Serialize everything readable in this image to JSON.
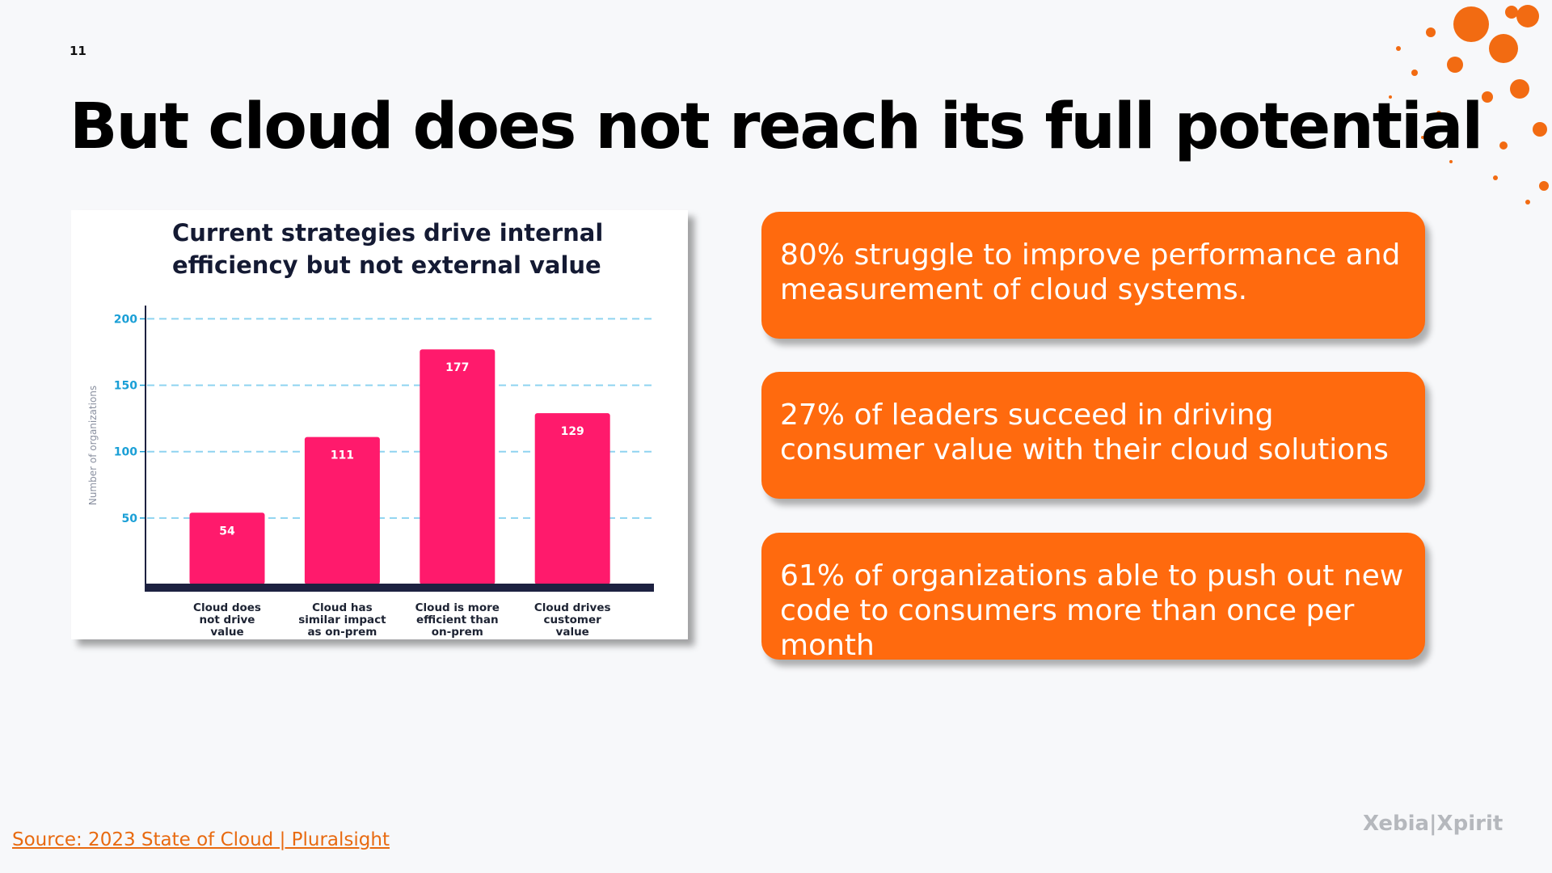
{
  "slide_number": "11",
  "title": "But cloud does not reach its full potential",
  "chart_data": {
    "type": "bar",
    "title": "Current strategies drive internal efficiency but not external value",
    "y_label": "Number of organizations",
    "categories": [
      "Cloud does not drive value",
      "Cloud has similar impact as on-prem",
      "Cloud is more efficient than on-prem",
      "Cloud drives customer value"
    ],
    "values": [
      54,
      111,
      177,
      129
    ],
    "color": "#ff1a6c",
    "ylim": [
      0,
      210
    ],
    "yticks": [
      50,
      100,
      150,
      200
    ],
    "grid": true
  },
  "cards": [
    "80% struggle to improve performance and measurement of cloud systems.",
    "27% of leaders succeed in driving consumer value with their cloud solutions",
    "61% of organizations able to push out new code to consumers more than once per month"
  ],
  "source": "Source: 2023 State of Cloud | Pluralsight",
  "logo": "Xebia|Xpirit"
}
